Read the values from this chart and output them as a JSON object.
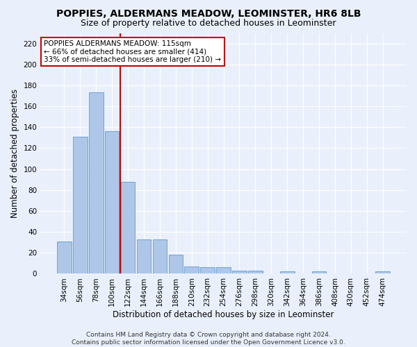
{
  "title": "POPPIES, ALDERMANS MEADOW, LEOMINSTER, HR6 8LB",
  "subtitle": "Size of property relative to detached houses in Leominster",
  "xlabel": "Distribution of detached houses by size in Leominster",
  "ylabel": "Number of detached properties",
  "categories": [
    "34sqm",
    "56sqm",
    "78sqm",
    "100sqm",
    "122sqm",
    "144sqm",
    "166sqm",
    "188sqm",
    "210sqm",
    "232sqm",
    "254sqm",
    "276sqm",
    "298sqm",
    "320sqm",
    "342sqm",
    "364sqm",
    "386sqm",
    "408sqm",
    "430sqm",
    "452sqm",
    "474sqm"
  ],
  "values": [
    31,
    131,
    173,
    136,
    88,
    33,
    33,
    18,
    7,
    6,
    6,
    3,
    3,
    0,
    2,
    0,
    2,
    0,
    0,
    0,
    2
  ],
  "bar_color": "#aec6e8",
  "bar_edge_color": "#5b9bd5",
  "vline_color": "#cc0000",
  "annotation_text": "POPPIES ALDERMANS MEADOW: 115sqm\n← 66% of detached houses are smaller (414)\n33% of semi-detached houses are larger (210) →",
  "annotation_box_color": "#ffffff",
  "annotation_box_edge_color": "#cc0000",
  "ylim": [
    0,
    230
  ],
  "yticks": [
    0,
    20,
    40,
    60,
    80,
    100,
    120,
    140,
    160,
    180,
    200,
    220
  ],
  "footnote": "Contains HM Land Registry data © Crown copyright and database right 2024.\nContains public sector information licensed under the Open Government Licence v3.0.",
  "background_color": "#eaf0fb",
  "plot_background_color": "#eaf0fb",
  "grid_color": "#ffffff",
  "title_fontsize": 10,
  "subtitle_fontsize": 9,
  "tick_fontsize": 7.5,
  "xlabel_fontsize": 8.5,
  "ylabel_fontsize": 8.5,
  "annotation_fontsize": 7.5,
  "footnote_fontsize": 6.5
}
